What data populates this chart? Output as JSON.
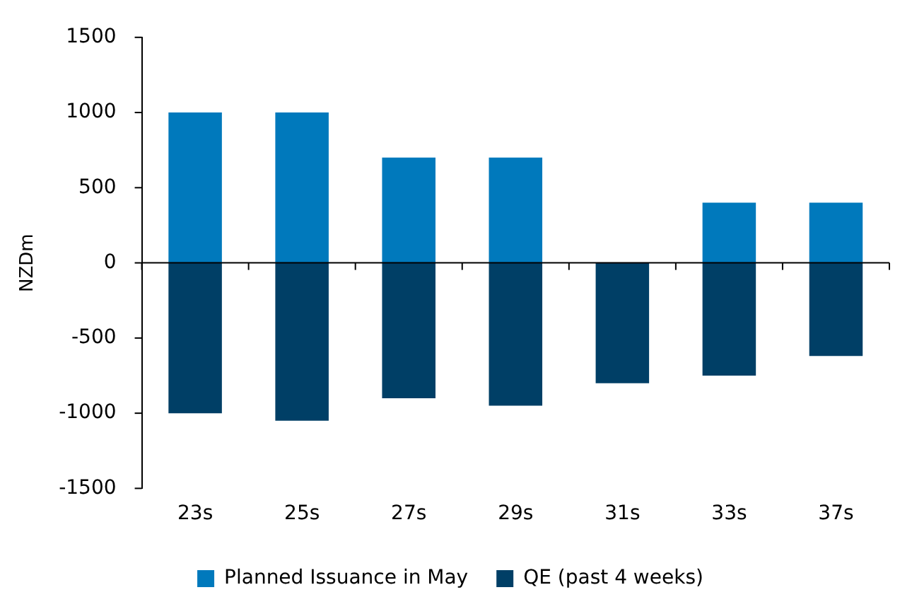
{
  "chart_data": {
    "type": "bar",
    "ylabel": "NZDm",
    "categories": [
      "23s",
      "25s",
      "27s",
      "29s",
      "31s",
      "33s",
      "37s"
    ],
    "series": [
      {
        "name": "Planned Issuance in May",
        "color": "#0079bc",
        "values": [
          1000,
          1000,
          700,
          700,
          null,
          400,
          400
        ]
      },
      {
        "name": "QE (past 4 weeks)",
        "color": "#003f66",
        "values": [
          -1000,
          -1050,
          -900,
          -950,
          -800,
          -750,
          -620
        ]
      }
    ],
    "stacked": true,
    "ylim": [
      -1500,
      1500
    ],
    "yticks": [
      -1500,
      -1000,
      -500,
      0,
      500,
      1000,
      1500
    ],
    "legend": "bottom"
  }
}
